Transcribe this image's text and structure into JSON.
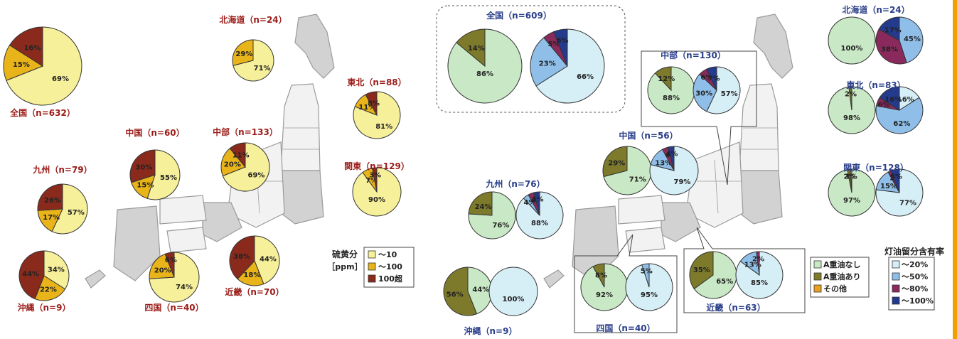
{
  "colors": {
    "map_fill": "#d2d2d2",
    "map_light": "#f2f2f2",
    "map_stroke": "#9a9a9a",
    "label_red": "#9b1c18",
    "label_navy": "#2a3f8a",
    "sulfur": {
      "low": "#f7f09a",
      "mid": "#e8b41a",
      "high": "#8a2a1c"
    },
    "type": {
      "none": "#c9e8c5",
      "with": "#7d7a2c",
      "other": "#e8a020"
    },
    "kerosene": {
      "k20": "#d6eef6",
      "k50": "#8fbfe8",
      "k80": "#8a2a5c",
      "k100": "#243a8c"
    }
  },
  "legends": {
    "sulfur": {
      "title1": "硫黄分",
      "title2": "［ppm］",
      "items": [
        "～10",
        "～100",
        "100超"
      ]
    },
    "fuel_type": {
      "items": [
        "A重油なし",
        "A重油あり",
        "その他"
      ]
    },
    "kerosene": {
      "title": "灯油留分含有率",
      "items": [
        "～20%",
        "～50%",
        "～80%",
        "～100%"
      ]
    }
  },
  "chart_data": [
    {
      "type": "pie",
      "title": "",
      "panel": "sulfur",
      "regions": [
        {
          "name": "全国（n=632）",
          "values": [
            69,
            15,
            16
          ],
          "labels": [
            "69%",
            "15%",
            "16%"
          ]
        },
        {
          "name": "北海道（n=24）",
          "values": [
            71,
            29
          ],
          "labels": [
            "71%",
            "29%"
          ]
        },
        {
          "name": "東北（n=88）",
          "values": [
            81,
            11,
            8
          ],
          "labels": [
            "81%",
            "11%",
            "8%"
          ]
        },
        {
          "name": "関東（n=129）",
          "values": [
            90,
            7,
            3
          ],
          "labels": [
            "90%",
            "7%",
            "3%"
          ]
        },
        {
          "name": "中部（n=133）",
          "values": [
            69,
            20,
            11
          ],
          "labels": [
            "69%",
            "20%",
            "11%"
          ]
        },
        {
          "name": "中国（n=60）",
          "values": [
            55,
            15,
            30
          ],
          "labels": [
            "55%",
            "15%",
            "30%"
          ]
        },
        {
          "name": "九州（n=79）",
          "values": [
            57,
            17,
            26
          ],
          "labels": [
            "57%",
            "17%",
            "26%"
          ]
        },
        {
          "name": "沖縄（n=9）",
          "values": [
            34,
            22,
            44
          ],
          "labels": [
            "34%",
            "22%",
            "44%"
          ]
        },
        {
          "name": "四国（n=40）",
          "values": [
            74,
            20,
            6
          ],
          "labels": [
            "74%",
            "20%",
            "6%"
          ]
        },
        {
          "name": "近畿（n=70）",
          "values": [
            44,
            18,
            38
          ],
          "labels": [
            "44%",
            "18%",
            "38%"
          ]
        }
      ]
    },
    {
      "type": "pie",
      "title": "",
      "panel": "fuel_type_and_kerosene",
      "regions": [
        {
          "name": "全国（n=609）",
          "type_values": [
            86,
            14
          ],
          "type_labels": [
            "86%",
            "14%"
          ],
          "kero_values": [
            66,
            23,
            5,
            6
          ],
          "kero_labels": [
            "66%",
            "23%",
            "5%",
            "6%"
          ]
        },
        {
          "name": "北海道（n=24）",
          "type_values": [
            100
          ],
          "type_labels": [
            "100%"
          ],
          "kero_values": [
            0,
            45,
            38,
            17
          ],
          "kero_labels": [
            "",
            "45%",
            "38%",
            "17%"
          ]
        },
        {
          "name": "東北（n=83）",
          "type_values": [
            98,
            2
          ],
          "type_labels": [
            "98%",
            "2%"
          ],
          "kero_values": [
            16,
            62,
            6,
            16
          ],
          "kero_labels": [
            "16%",
            "62%",
            "6%",
            "16%"
          ]
        },
        {
          "name": "関東（n=128）",
          "type_values": [
            97,
            2,
            1
          ],
          "type_labels": [
            "97%",
            "2%",
            "1%"
          ],
          "kero_values": [
            77,
            15,
            2,
            6
          ],
          "kero_labels": [
            "77%",
            "15%",
            "2",
            "6%"
          ]
        },
        {
          "name": "中部（n=130）",
          "type_values": [
            88,
            12
          ],
          "type_labels": [
            "88%",
            "12%"
          ],
          "kero_values": [
            57,
            30,
            6,
            7
          ],
          "kero_labels": [
            "57%",
            "30%",
            "6%",
            "7%"
          ]
        },
        {
          "name": "中国（n=56）",
          "type_values": [
            71,
            29
          ],
          "type_labels": [
            "71%",
            "29%"
          ],
          "kero_values": [
            79,
            13,
            4,
            4
          ],
          "kero_labels": [
            "79%",
            "13%",
            "4",
            "4%"
          ]
        },
        {
          "name": "九州（n=76）",
          "type_values": [
            76,
            24
          ],
          "type_labels": [
            "76%",
            "24%"
          ],
          "kero_values": [
            88,
            4,
            4,
            4
          ],
          "kero_labels": [
            "88%",
            "4%",
            "4",
            "4%"
          ]
        },
        {
          "name": "沖縄（n=9）",
          "type_values": [
            44,
            56
          ],
          "type_labels": [
            "44%",
            "56%"
          ],
          "kero_values": [
            100
          ],
          "kero_labels": [
            "100%"
          ]
        },
        {
          "name": "四国（n=40）",
          "type_values": [
            92,
            8
          ],
          "type_labels": [
            "92%",
            "8%"
          ],
          "kero_values": [
            95,
            5
          ],
          "kero_labels": [
            "95%",
            "5%"
          ]
        },
        {
          "name": "近畿（n=63）",
          "type_values": [
            65,
            35
          ],
          "type_labels": [
            "65%",
            "35%"
          ],
          "kero_values": [
            85,
            13,
            2
          ],
          "kero_labels": [
            "85%",
            "13%",
            "2%"
          ]
        }
      ]
    }
  ]
}
